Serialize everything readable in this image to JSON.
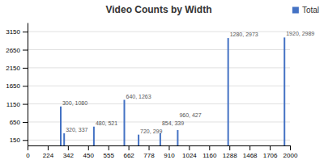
{
  "chart_data": {
    "type": "bar",
    "title": "Video Counts by Width",
    "x": [
      300,
      320,
      480,
      640,
      720,
      854,
      960,
      1280,
      1920
    ],
    "series": [
      {
        "name": "Total",
        "color": "#4472c4",
        "values": [
          1080,
          337,
          521,
          1263,
          299,
          339,
          427,
          2973,
          2989
        ],
        "value_labels": [
          "300, 1080",
          "320, 337",
          "480, 521",
          "640, 1263",
          "720, 299",
          "854, 339",
          "960, 427",
          "1280, 2973",
          "1920, 2989"
        ]
      }
    ],
    "xlim": [
      0,
      2000
    ],
    "xticks": [
      0,
      224,
      342,
      450,
      555,
      662,
      778,
      910,
      1024,
      1160,
      1288,
      1468,
      1706,
      2000
    ],
    "ylim": [
      0,
      3400
    ],
    "yticks": [
      150,
      650,
      1150,
      1650,
      2150,
      2650,
      3150
    ],
    "grid": true,
    "legend": "upper right",
    "data_labels": true
  }
}
